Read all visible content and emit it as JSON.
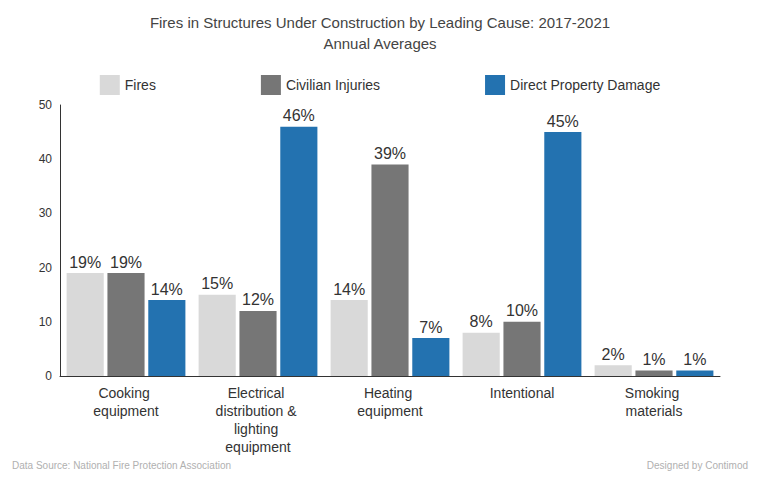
{
  "chart_data": {
    "type": "bar",
    "title": "Fires in Structures Under Construction by Leading Cause: 2017-2021",
    "subtitle": "Annual Averages",
    "categories": [
      "Cooking equipment",
      "Electrical distribution & lighting equipment",
      "Heating equipment",
      "Intentional",
      "Smoking materials"
    ],
    "series": [
      {
        "name": "Fires",
        "color": "#d9d9d9",
        "values": [
          19,
          15,
          14,
          8,
          2
        ],
        "value_labels": [
          "19%",
          "15%",
          "14%",
          "8%",
          "2%"
        ]
      },
      {
        "name": "Civilian Injuries",
        "color": "#767676",
        "values": [
          19,
          12,
          39,
          10,
          1
        ],
        "value_labels": [
          "19%",
          "12%",
          "39%",
          "10%",
          "1%"
        ]
      },
      {
        "name": "Direct Property Damage",
        "color": "#2372b0",
        "values": [
          14,
          46,
          7,
          45,
          1
        ],
        "value_labels": [
          "14%",
          "46%",
          "7%",
          "45%",
          "1%"
        ]
      }
    ],
    "ylim": [
      0,
      50
    ],
    "yticks": [
      0,
      10,
      20,
      30,
      40,
      50
    ],
    "grid": false,
    "legend": "top",
    "data_labels": true,
    "annotations": [
      "Data Source: National Fire Protection Association",
      "Designed by Contimod"
    ]
  }
}
